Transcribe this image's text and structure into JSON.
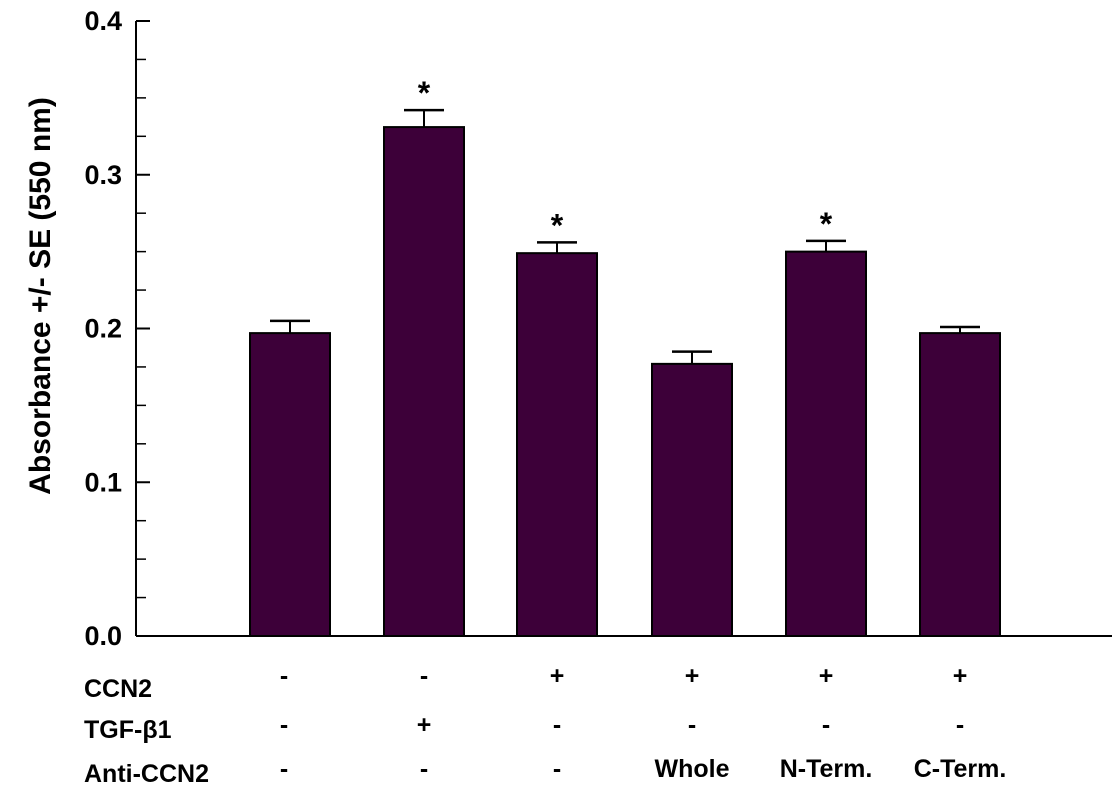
{
  "chart_data": {
    "type": "bar",
    "ylabel": "Absorbance +/- SE (550 nm)",
    "ylim": [
      0,
      0.4
    ],
    "yticks": [
      "0.0",
      "0.1",
      "0.2",
      "0.3",
      "0.4"
    ],
    "values": [
      0.197,
      0.331,
      0.249,
      0.177,
      0.25,
      0.197
    ],
    "errors": [
      0.008,
      0.011,
      0.007,
      0.008,
      0.007,
      0.004
    ],
    "significant": [
      false,
      true,
      true,
      false,
      true,
      false
    ],
    "significance_marker": "*",
    "bar_color": "#3d0039",
    "grid": false,
    "condition_rows": [
      {
        "label": "CCN2",
        "values": [
          "-",
          "-",
          "+",
          "+",
          "+",
          "+"
        ]
      },
      {
        "label": "TGF-β1",
        "values": [
          "-",
          "+",
          "-",
          "-",
          "-",
          "-"
        ]
      },
      {
        "label": "Anti-CCN2",
        "values": [
          "-",
          "-",
          "-",
          "Whole",
          "N-Term.",
          "C-Term."
        ]
      }
    ]
  }
}
